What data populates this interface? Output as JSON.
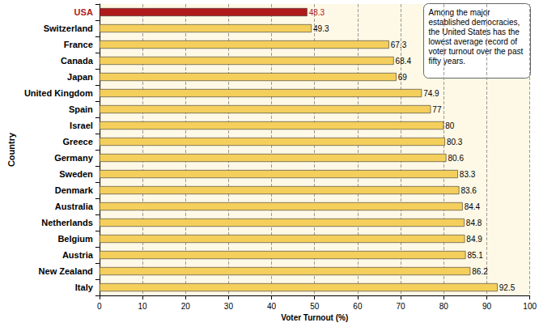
{
  "chart_data": {
    "type": "bar",
    "orientation": "horizontal",
    "categories": [
      "USA",
      "Switzerland",
      "France",
      "Canada",
      "Japan",
      "United Kingdom",
      "Spain",
      "Israel",
      "Greece",
      "Germany",
      "Sweden",
      "Denmark",
      "Australia",
      "Netherlands",
      "Belgium",
      "Austria",
      "New Zealand",
      "Italy"
    ],
    "values": [
      48.3,
      49.3,
      67.3,
      68.4,
      69,
      74.9,
      77,
      80,
      80.3,
      80.6,
      83.3,
      83.6,
      84.4,
      84.8,
      84.9,
      85.1,
      86.2,
      92.5
    ],
    "colors": [
      "#b01a1a",
      "#f5cf5c",
      "#f5cf5c",
      "#f5cf5c",
      "#f5cf5c",
      "#f5cf5c",
      "#f5cf5c",
      "#f5cf5c",
      "#f5cf5c",
      "#f5cf5c",
      "#f5cf5c",
      "#f5cf5c",
      "#f5cf5c",
      "#f5cf5c",
      "#f5cf5c",
      "#f5cf5c",
      "#f5cf5c",
      "#f5cf5c"
    ],
    "x_label": "Voter Turnout (%)",
    "y_label": "Country",
    "xlim": [
      0,
      100
    ],
    "xticks": [
      0,
      10,
      20,
      30,
      40,
      50,
      60,
      70,
      80,
      90,
      100
    ],
    "grid": true,
    "data_labels": true,
    "annotation": "Among the major established democracies, the United States has the lowest average record of voter turnout over the past fifty years."
  }
}
